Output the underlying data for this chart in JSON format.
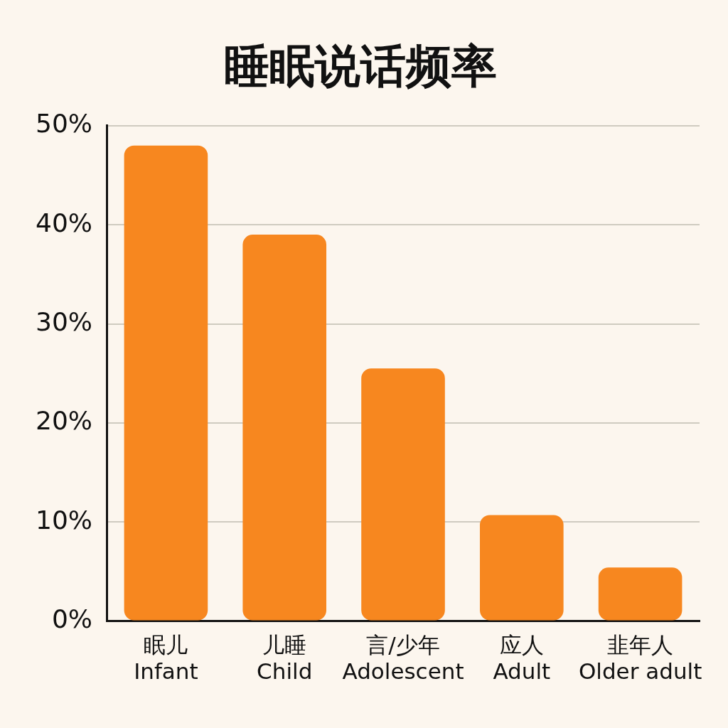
{
  "chart_data": {
    "type": "bar",
    "title": "睡眠说话频率",
    "categories": [
      "眠儿\nInfant",
      "儿睡\nChild",
      "言/少年\nAdolescent",
      "应人\nAdult",
      "韭年人\nOlder adult"
    ],
    "values": [
      48,
      39,
      25.5,
      10.7,
      5.4
    ],
    "color": "#f7871f",
    "ylim": [
      0,
      50
    ],
    "yticks": [
      {
        "value": 0,
        "label": "0%"
      },
      {
        "value": 10,
        "label": "10%"
      },
      {
        "value": 20,
        "label": "20%"
      },
      {
        "value": 30,
        "label": "30%"
      },
      {
        "value": 40,
        "label": "40%"
      },
      {
        "value": 50,
        "label": "50%"
      }
    ],
    "grid": "y",
    "legend": false
  }
}
